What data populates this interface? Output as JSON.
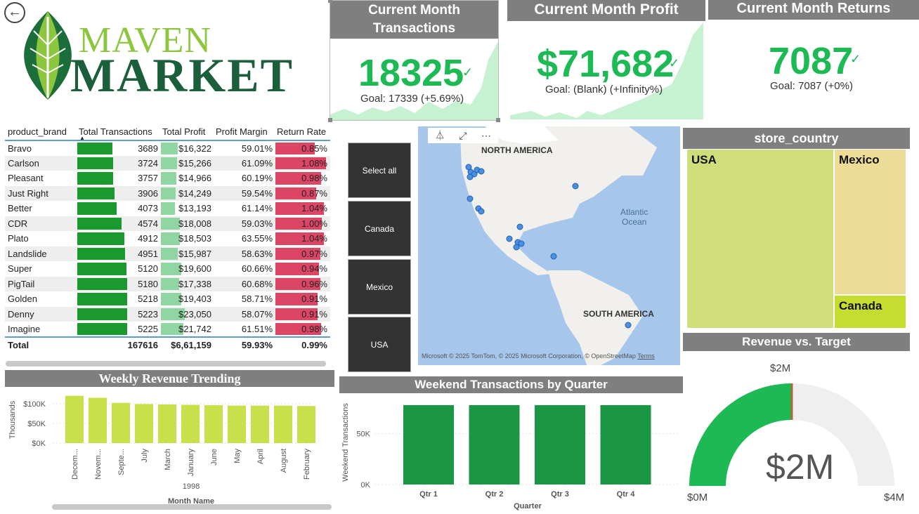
{
  "logo": {
    "line1": "MAVEN",
    "line2": "MARKET"
  },
  "kpis": {
    "transactions": {
      "title_line1": "Current Month",
      "title_line2": "Transactions",
      "value": "18325",
      "goal": "Goal: 17339 (+5.69%)"
    },
    "profit": {
      "title": "Current Month Profit",
      "value": "$71,682",
      "goal": "Goal: (Blank) (+Infinity%)"
    },
    "returns": {
      "title": "Current Month Returns",
      "value": "7087",
      "goal": "Goal: 7087 (+0%)"
    },
    "check": "✓"
  },
  "brand_table": {
    "headers": [
      "product_brand",
      "Total Transactions",
      "Total Profit",
      "Profit Margin",
      "Return Rate"
    ],
    "rows": [
      [
        "Bravo",
        "3689",
        "$16,322",
        "59.01%",
        "0.85%"
      ],
      [
        "Carlson",
        "3724",
        "$15,266",
        "61.09%",
        "1.08%"
      ],
      [
        "Pleasant",
        "3757",
        "$14,966",
        "60.19%",
        "0.98%"
      ],
      [
        "Just Right",
        "3906",
        "$14,249",
        "59.54%",
        "0.87%"
      ],
      [
        "Better",
        "4073",
        "$13,193",
        "61.14%",
        "1.04%"
      ],
      [
        "CDR",
        "4574",
        "$18,008",
        "59.03%",
        "1.00%"
      ],
      [
        "Plato",
        "4912",
        "$18,503",
        "63.55%",
        "1.04%"
      ],
      [
        "Landslide",
        "4951",
        "$15,987",
        "58.63%",
        "0.97%"
      ],
      [
        "Super",
        "5120",
        "$19,600",
        "60.66%",
        "0.94%"
      ],
      [
        "PigTail",
        "5180",
        "$17,338",
        "60.68%",
        "0.96%"
      ],
      [
        "Golden",
        "5218",
        "$19,403",
        "58.71%",
        "0.91%"
      ],
      [
        "Denny",
        "5223",
        "$23,050",
        "58.07%",
        "0.91%"
      ],
      [
        "Imagine",
        "5225",
        "$21,742",
        "61.51%",
        "0.98%"
      ]
    ],
    "total": [
      "Total",
      "167616",
      "$6,61,159",
      "59.93%",
      "0.99%"
    ]
  },
  "slicer": {
    "items": [
      "Select all",
      "Canada",
      "Mexico",
      "USA"
    ]
  },
  "map": {
    "label_na": "NORTH AMERICA",
    "label_sa": "SOUTH AMERICA",
    "label_ocean_1": "Atlantic",
    "label_ocean_2": "Ocean",
    "attribution": "© 2025 TomTom, © 2025 Microsoft Corporation, © OpenStreetMap",
    "terms": "Terms",
    "ms_logo": "Microsoft"
  },
  "treemap": {
    "title": "store_country",
    "cells": [
      {
        "label": "USA",
        "color": "#cfdd7b"
      },
      {
        "label": "Mexico",
        "color": "#ecdc98"
      },
      {
        "label": "Canada",
        "color": "#c5dd2f"
      }
    ]
  },
  "gauge": {
    "title": "Revenue vs. Target",
    "value_label": "$2M",
    "target_label": "$2M",
    "min_label": "$0M",
    "max_label": "$4M",
    "fill_fraction": 0.5,
    "fill_color": "#1db954",
    "bg_color": "#efefef"
  },
  "weekly": {
    "title": "Weekly Revenue Trending",
    "scroll": true
  },
  "weekend": {
    "title": "Weekend Transactions by Quarter"
  },
  "chart_data": [
    {
      "type": "bar",
      "title": "Weekly Revenue Trending",
      "ylabel": "Thousands",
      "xlabel": "Month Name",
      "x_group_label": "1998",
      "categories": [
        "Decem...",
        "Novem...",
        "Septe...",
        "July",
        "March",
        "January",
        "June",
        "May",
        "April",
        "August",
        "February"
      ],
      "values": [
        120,
        115,
        102,
        99,
        98,
        97,
        96,
        95,
        95,
        95,
        94
      ],
      "yticks": [
        "$100K",
        "$50K",
        "$0K"
      ],
      "ylim": [
        0,
        130
      ],
      "color": "#c8e04a"
    },
    {
      "type": "bar",
      "title": "Weekend Transactions by Quarter",
      "ylabel": "Weekend Transactions",
      "xlabel": "Quarter",
      "categories": [
        "Qtr 1",
        "Qtr 2",
        "Qtr 3",
        "Qtr 4"
      ],
      "values": [
        78000,
        78000,
        78000,
        78000
      ],
      "yticks": [
        "50K",
        "0K"
      ],
      "ylim": [
        0,
        80000
      ],
      "color": "#1a9645"
    }
  ]
}
